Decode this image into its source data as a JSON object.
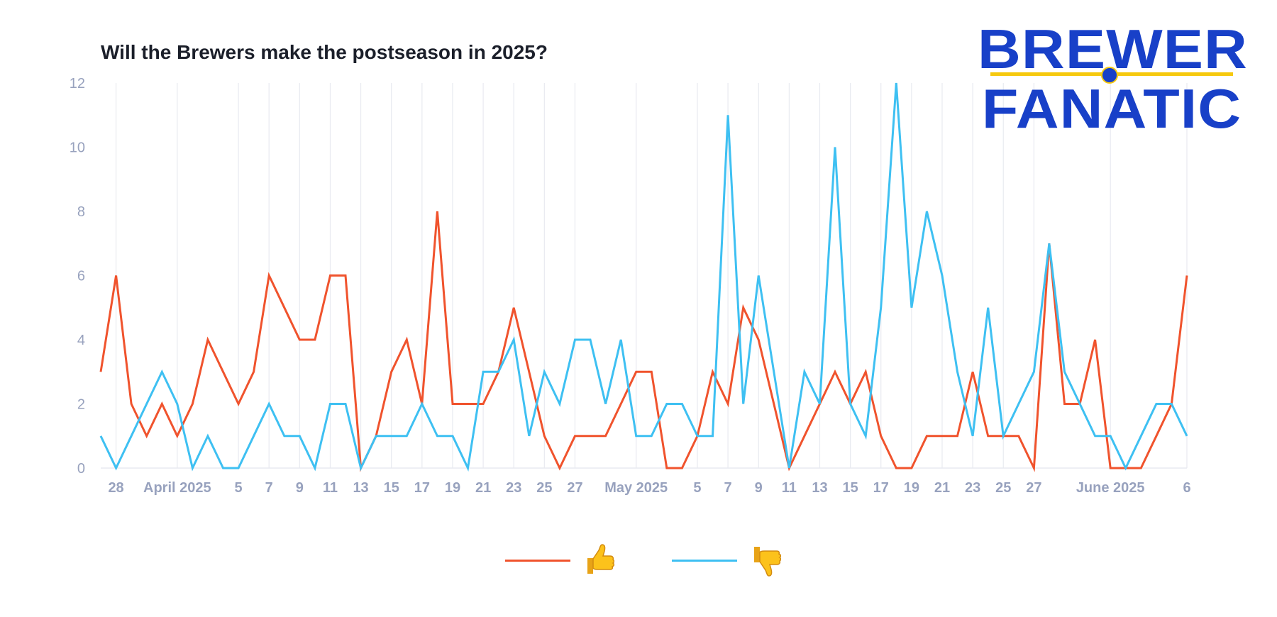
{
  "logo": {
    "line1": "BREWER",
    "line2": "FANATIC",
    "colors": {
      "blue": "#1840c8",
      "gold": "#f6c90e"
    }
  },
  "chart_data": {
    "type": "line",
    "title": "Will the Brewers make the postseason in 2025?",
    "xlabel": "",
    "ylabel": "",
    "ylim": [
      0,
      12
    ],
    "yticks": [
      0,
      2,
      4,
      6,
      8,
      10,
      12
    ],
    "grid": "vertical lines at x ticks",
    "legend_position": "bottom-center",
    "x": [
      "2025-03-27",
      "2025-03-28",
      "2025-03-29",
      "2025-03-30",
      "2025-03-31",
      "2025-04-01",
      "2025-04-02",
      "2025-04-03",
      "2025-04-04",
      "2025-04-05",
      "2025-04-06",
      "2025-04-07",
      "2025-04-08",
      "2025-04-09",
      "2025-04-10",
      "2025-04-11",
      "2025-04-12",
      "2025-04-13",
      "2025-04-14",
      "2025-04-15",
      "2025-04-16",
      "2025-04-17",
      "2025-04-18",
      "2025-04-19",
      "2025-04-20",
      "2025-04-21",
      "2025-04-22",
      "2025-04-23",
      "2025-04-24",
      "2025-04-25",
      "2025-04-26",
      "2025-04-27",
      "2025-04-28",
      "2025-04-29",
      "2025-04-30",
      "2025-05-01",
      "2025-05-02",
      "2025-05-03",
      "2025-05-04",
      "2025-05-05",
      "2025-05-06",
      "2025-05-07",
      "2025-05-08",
      "2025-05-09",
      "2025-05-10",
      "2025-05-11",
      "2025-05-12",
      "2025-05-13",
      "2025-05-14",
      "2025-05-15",
      "2025-05-16",
      "2025-05-17",
      "2025-05-18",
      "2025-05-19",
      "2025-05-20",
      "2025-05-21",
      "2025-05-22",
      "2025-05-23",
      "2025-05-24",
      "2025-05-25",
      "2025-05-26",
      "2025-05-27",
      "2025-05-28",
      "2025-05-29",
      "2025-05-30",
      "2025-05-31",
      "2025-06-01",
      "2025-06-02",
      "2025-06-03",
      "2025-06-04",
      "2025-06-05",
      "2025-06-06"
    ],
    "xticks": [
      {
        "date": "2025-03-28",
        "label": "28"
      },
      {
        "date": "2025-04-01",
        "label": "April 2025"
      },
      {
        "date": "2025-04-05",
        "label": "5"
      },
      {
        "date": "2025-04-07",
        "label": "7"
      },
      {
        "date": "2025-04-09",
        "label": "9"
      },
      {
        "date": "2025-04-11",
        "label": "11"
      },
      {
        "date": "2025-04-13",
        "label": "13"
      },
      {
        "date": "2025-04-15",
        "label": "15"
      },
      {
        "date": "2025-04-17",
        "label": "17"
      },
      {
        "date": "2025-04-19",
        "label": "19"
      },
      {
        "date": "2025-04-21",
        "label": "21"
      },
      {
        "date": "2025-04-23",
        "label": "23"
      },
      {
        "date": "2025-04-25",
        "label": "25"
      },
      {
        "date": "2025-04-27",
        "label": "27"
      },
      {
        "date": "2025-05-01",
        "label": "May 2025"
      },
      {
        "date": "2025-05-05",
        "label": "5"
      },
      {
        "date": "2025-05-07",
        "label": "7"
      },
      {
        "date": "2025-05-09",
        "label": "9"
      },
      {
        "date": "2025-05-11",
        "label": "11"
      },
      {
        "date": "2025-05-13",
        "label": "13"
      },
      {
        "date": "2025-05-15",
        "label": "15"
      },
      {
        "date": "2025-05-17",
        "label": "17"
      },
      {
        "date": "2025-05-19",
        "label": "19"
      },
      {
        "date": "2025-05-21",
        "label": "21"
      },
      {
        "date": "2025-05-23",
        "label": "23"
      },
      {
        "date": "2025-05-25",
        "label": "25"
      },
      {
        "date": "2025-05-27",
        "label": "27"
      },
      {
        "date": "2025-06-01",
        "label": "June 2025"
      },
      {
        "date": "2025-06-06",
        "label": "6"
      }
    ],
    "series": [
      {
        "icon": "thumbs-up",
        "color": "#f0532d",
        "values": [
          3,
          6,
          2,
          1,
          2,
          1,
          2,
          4,
          3,
          2,
          3,
          6,
          5,
          4,
          4,
          6,
          6,
          0,
          1,
          3,
          4,
          2,
          8,
          2,
          2,
          2,
          3,
          5,
          3,
          1,
          0,
          1,
          1,
          1,
          2,
          3,
          3,
          0,
          0,
          1,
          3,
          2,
          5,
          4,
          2,
          0,
          1,
          2,
          3,
          2,
          3,
          1,
          0,
          0,
          1,
          1,
          1,
          3,
          1,
          1,
          1,
          0,
          7,
          2,
          2,
          4,
          0,
          0,
          0,
          1,
          2,
          6
        ]
      },
      {
        "icon": "thumbs-down",
        "color": "#3ec0f2",
        "values": [
          1,
          0,
          1,
          2,
          3,
          2,
          0,
          1,
          0,
          0,
          1,
          2,
          1,
          1,
          0,
          2,
          2,
          0,
          1,
          1,
          1,
          2,
          1,
          1,
          0,
          3,
          3,
          4,
          1,
          3,
          2,
          4,
          4,
          2,
          4,
          1,
          1,
          2,
          2,
          1,
          1,
          11,
          2,
          6,
          3,
          0,
          3,
          2,
          10,
          2,
          1,
          5,
          12,
          5,
          8,
          6,
          3,
          1,
          5,
          1,
          2,
          3,
          7,
          3,
          2,
          1,
          1,
          0,
          1,
          2,
          2,
          1
        ]
      }
    ],
    "axis_label_color": "#98a2be",
    "grid_color": "#e8eaf0"
  }
}
